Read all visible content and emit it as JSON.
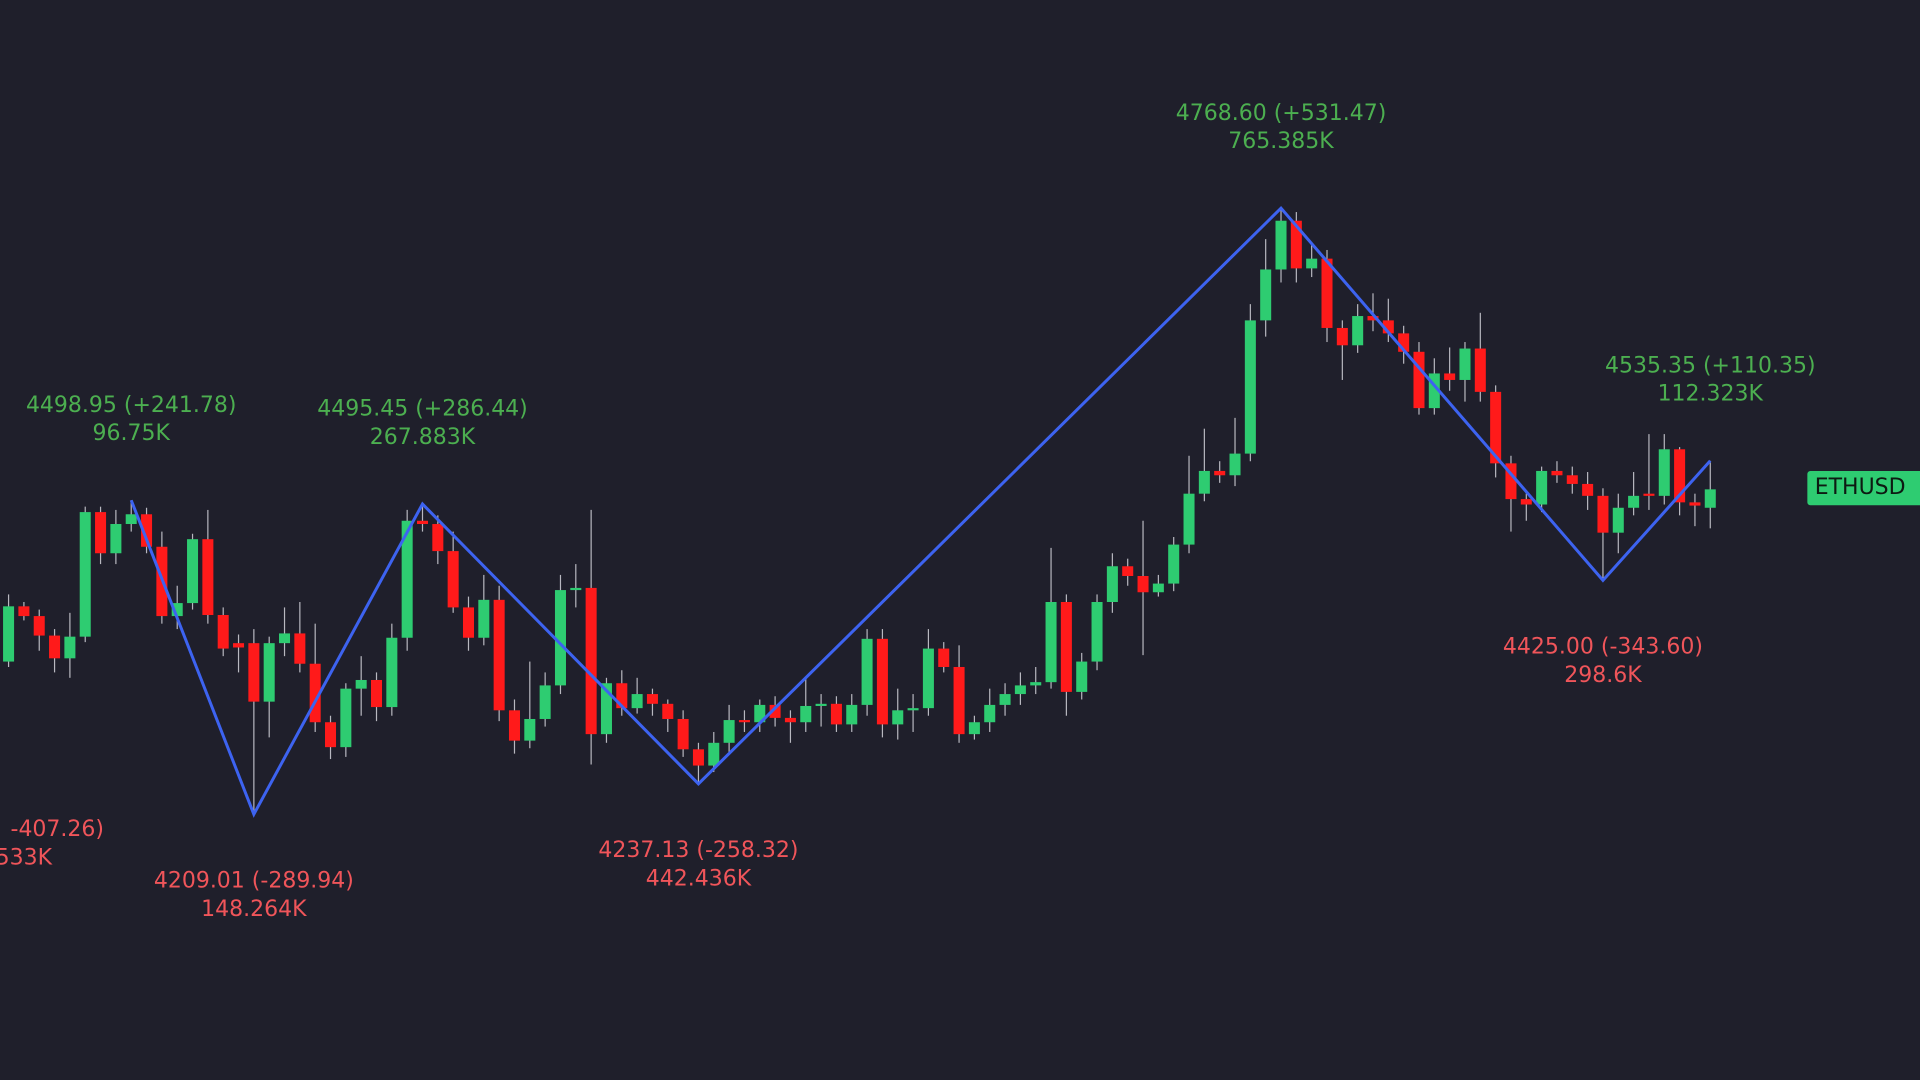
{
  "chart_data": {
    "type": "candlestick",
    "symbol": "ETHUSD",
    "up_color": "#2ecc71",
    "down_color": "#ff1a1a",
    "line_color": "#3d63f0",
    "up_text_color": "#4caf50",
    "down_text_color": "#f0555a",
    "candles": [
      [
        4350,
        4412,
        4345,
        4401
      ],
      [
        4401,
        4405,
        4388,
        4392
      ],
      [
        4392,
        4398,
        4360,
        4374
      ],
      [
        4374,
        4380,
        4340,
        4353
      ],
      [
        4353,
        4395,
        4335,
        4373
      ],
      [
        4373,
        4493,
        4368,
        4488
      ],
      [
        4488,
        4493,
        4440,
        4450
      ],
      [
        4450,
        4490,
        4440,
        4477
      ],
      [
        4477,
        4498.95,
        4470,
        4486
      ],
      [
        4486,
        4492,
        4450,
        4456
      ],
      [
        4456,
        4470,
        4385,
        4392
      ],
      [
        4392,
        4420,
        4380,
        4404
      ],
      [
        4404,
        4468,
        4398,
        4463
      ],
      [
        4463,
        4490,
        4385,
        4393
      ],
      [
        4393,
        4400,
        4355,
        4362
      ],
      [
        4367,
        4375,
        4340,
        4363
      ],
      [
        4367,
        4380,
        4209.01,
        4313
      ],
      [
        4313,
        4373,
        4280,
        4367
      ],
      [
        4367,
        4400,
        4355,
        4376
      ],
      [
        4376,
        4405,
        4340,
        4348
      ],
      [
        4348,
        4385,
        4285,
        4294
      ],
      [
        4294,
        4300,
        4260,
        4271
      ],
      [
        4271,
        4330,
        4262,
        4325
      ],
      [
        4325,
        4355,
        4300,
        4333
      ],
      [
        4333,
        4340,
        4295,
        4308
      ],
      [
        4308,
        4385,
        4300,
        4372
      ],
      [
        4372,
        4490,
        4360,
        4480
      ],
      [
        4480,
        4495.45,
        4470,
        4477
      ],
      [
        4477,
        4485,
        4440,
        4452
      ],
      [
        4452,
        4470,
        4395,
        4400
      ],
      [
        4400,
        4410,
        4360,
        4372
      ],
      [
        4372,
        4430,
        4365,
        4407
      ],
      [
        4407,
        4420,
        4295,
        4305
      ],
      [
        4305,
        4315,
        4265,
        4277
      ],
      [
        4277,
        4350,
        4270,
        4297
      ],
      [
        4297,
        4340,
        4290,
        4328
      ],
      [
        4328,
        4430,
        4320,
        4416
      ],
      [
        4416,
        4440,
        4400,
        4418
      ],
      [
        4418,
        4490,
        4255,
        4283
      ],
      [
        4283,
        4335,
        4275,
        4330
      ],
      [
        4330,
        4342,
        4300,
        4307
      ],
      [
        4307,
        4335,
        4302,
        4320
      ],
      [
        4320,
        4325,
        4300,
        4311
      ],
      [
        4311,
        4315,
        4285,
        4297
      ],
      [
        4297,
        4305,
        4262,
        4269
      ],
      [
        4269,
        4275,
        4237.13,
        4254
      ],
      [
        4254,
        4285,
        4248,
        4275
      ],
      [
        4275,
        4310,
        4265,
        4296
      ],
      [
        4296,
        4305,
        4285,
        4294
      ],
      [
        4294,
        4315,
        4285,
        4310
      ],
      [
        4310,
        4318,
        4290,
        4298
      ],
      [
        4298,
        4305,
        4275,
        4294
      ],
      [
        4294,
        4335,
        4285,
        4309
      ],
      [
        4309,
        4320,
        4290,
        4311
      ],
      [
        4311,
        4318,
        4285,
        4292
      ],
      [
        4292,
        4320,
        4285,
        4310
      ],
      [
        4310,
        4380,
        4300,
        4371
      ],
      [
        4371,
        4380,
        4280,
        4292
      ],
      [
        4292,
        4325,
        4278,
        4305
      ],
      [
        4305,
        4320,
        4285,
        4307
      ],
      [
        4307,
        4380,
        4300,
        4362
      ],
      [
        4362,
        4368,
        4340,
        4345
      ],
      [
        4345,
        4365,
        4275,
        4283
      ],
      [
        4283,
        4300,
        4278,
        4294
      ],
      [
        4294,
        4325,
        4285,
        4310
      ],
      [
        4310,
        4330,
        4300,
        4320
      ],
      [
        4320,
        4340,
        4310,
        4328
      ],
      [
        4328,
        4345,
        4320,
        4331
      ],
      [
        4331,
        4455,
        4325,
        4405
      ],
      [
        4405,
        4412,
        4300,
        4322
      ],
      [
        4322,
        4358,
        4315,
        4350
      ],
      [
        4350,
        4412,
        4342,
        4405
      ],
      [
        4405,
        4450,
        4395,
        4438
      ],
      [
        4438,
        4445,
        4420,
        4429
      ],
      [
        4429,
        4480,
        4356,
        4414
      ],
      [
        4414,
        4430,
        4410,
        4422
      ],
      [
        4422,
        4465,
        4415,
        4458
      ],
      [
        4458,
        4540,
        4450,
        4505
      ],
      [
        4505,
        4565,
        4498,
        4526
      ],
      [
        4526,
        4535,
        4515,
        4522
      ],
      [
        4522,
        4575,
        4512,
        4542
      ],
      [
        4542,
        4680,
        4535,
        4665
      ],
      [
        4665,
        4740,
        4650,
        4712
      ],
      [
        4712,
        4768.6,
        4700,
        4757
      ],
      [
        4757,
        4765,
        4700,
        4713
      ],
      [
        4713,
        4735,
        4705,
        4722
      ],
      [
        4722,
        4730,
        4645,
        4658
      ],
      [
        4658,
        4665,
        4610,
        4642
      ],
      [
        4642,
        4680,
        4635,
        4669
      ],
      [
        4669,
        4690,
        4655,
        4665
      ],
      [
        4665,
        4685,
        4645,
        4653
      ],
      [
        4653,
        4660,
        4625,
        4636
      ],
      [
        4636,
        4645,
        4578,
        4584
      ],
      [
        4584,
        4630,
        4578,
        4616
      ],
      [
        4616,
        4640,
        4600,
        4610
      ],
      [
        4610,
        4645,
        4590,
        4639
      ],
      [
        4639,
        4672,
        4590,
        4599
      ],
      [
        4599,
        4605,
        4520,
        4533
      ],
      [
        4533,
        4540,
        4470,
        4500
      ],
      [
        4500,
        4505,
        4480,
        4495
      ],
      [
        4495,
        4530,
        4488,
        4526
      ],
      [
        4526,
        4535,
        4515,
        4522
      ],
      [
        4522,
        4530,
        4505,
        4514
      ],
      [
        4514,
        4525,
        4490,
        4503
      ],
      [
        4503,
        4510,
        4425.0,
        4469
      ],
      [
        4469,
        4505,
        4450,
        4492
      ],
      [
        4492,
        4525,
        4485,
        4503
      ],
      [
        4505,
        4560,
        4490,
        4503
      ],
      [
        4503,
        4560,
        4495,
        4546
      ],
      [
        4546,
        4548,
        4485,
        4497
      ],
      [
        4497,
        4505,
        4475,
        4494
      ],
      [
        4492,
        4535.35,
        4473,
        4509
      ]
    ],
    "pivots": [
      {
        "label": "-407.26)",
        "volume": "533K"
      },
      {
        "price": 4498.95,
        "label": "4498.95 (+241.78)",
        "volume": "96.75K"
      },
      {
        "price": 4209.01,
        "label": "4209.01 (-289.94)",
        "volume": "148.264K"
      },
      {
        "price": 4495.45,
        "label": "4495.45 (+286.44)",
        "volume": "267.883K"
      },
      {
        "price": 4237.13,
        "label": "4237.13 (-258.32)",
        "volume": "442.436K"
      },
      {
        "price": 4768.6,
        "label": "4768.60 (+531.47)",
        "volume": "765.385K"
      },
      {
        "price": 4425.0,
        "label": "4425.00 (-343.60)",
        "volume": "298.6K"
      },
      {
        "price": 4535.35,
        "label": "4535.35 (+110.35)",
        "volume": "112.323K"
      }
    ]
  }
}
